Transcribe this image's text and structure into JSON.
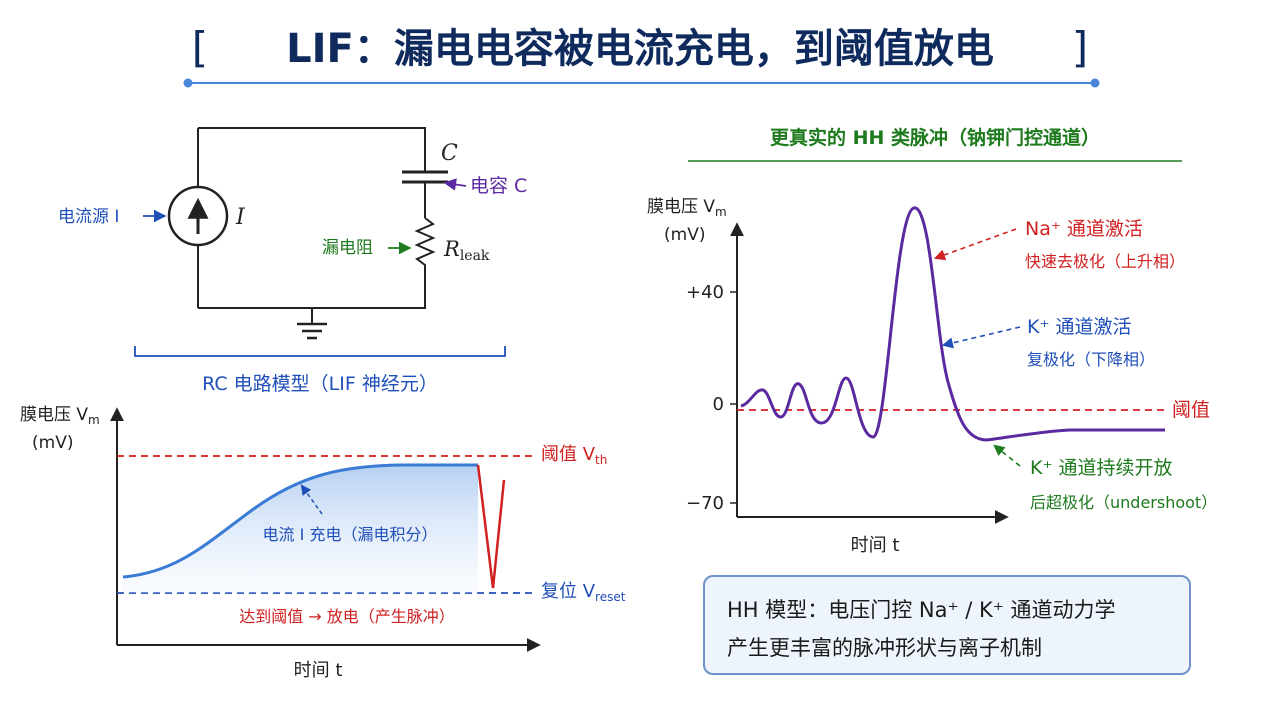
{
  "title": {
    "bracket_left": "[",
    "text": "LIF：漏电电容被电流充电，到阈值放电",
    "bracket_right": "]"
  },
  "colors": {
    "title": "#0f2a5c",
    "blue": "#1f4fb8",
    "purple": "#5b2aa0",
    "green": "#1d7a1d",
    "red": "#d12020",
    "wire": "#222222"
  },
  "circuit": {
    "current_source_label": "电流源 I",
    "source_symbol": "I",
    "capacitor_symbol": "C",
    "capacitor_label": "电容 C",
    "resistor_label": "漏电阻",
    "resistor_symbol": "R",
    "resistor_subscript": "leak",
    "caption": "RC 电路模型（LIF 神经元）"
  },
  "lif_chart": {
    "ylabel": "膜电压 V",
    "ylabel_sub": "m",
    "yunit": "(mV)",
    "xlabel": "时间 t",
    "threshold_label": "阈值 V",
    "threshold_sub": "th",
    "reset_label": "复位 V",
    "reset_sub": "reset",
    "charge_annotation": "电流 I 充电（漏电积分）",
    "fire_annotation": "达到阈值 → 放电（产生脉冲）"
  },
  "hh_chart": {
    "heading": "更真实的 HH 类脉冲（钠钾门控通道）",
    "ylabel": "膜电压 V",
    "ylabel_sub": "m",
    "yunit": "(mV)",
    "xlabel": "时间 t",
    "ticks": [
      "+40",
      "0",
      "−70"
    ],
    "threshold_label": "阈值",
    "na_line1": "Na⁺ 通道激活",
    "na_line2": "快速去极化（上升相）",
    "k_line1": "K⁺ 通道激活",
    "k_line2": "复极化（下降相）",
    "k2_line1": "K⁺ 通道持续开放",
    "k2_line2": "后超极化（undershoot）"
  },
  "note": {
    "line1": "HH 模型：电压门控 Na⁺ / K⁺ 通道动力学",
    "line2": "产生更丰富的脉冲形状与离子机制"
  }
}
